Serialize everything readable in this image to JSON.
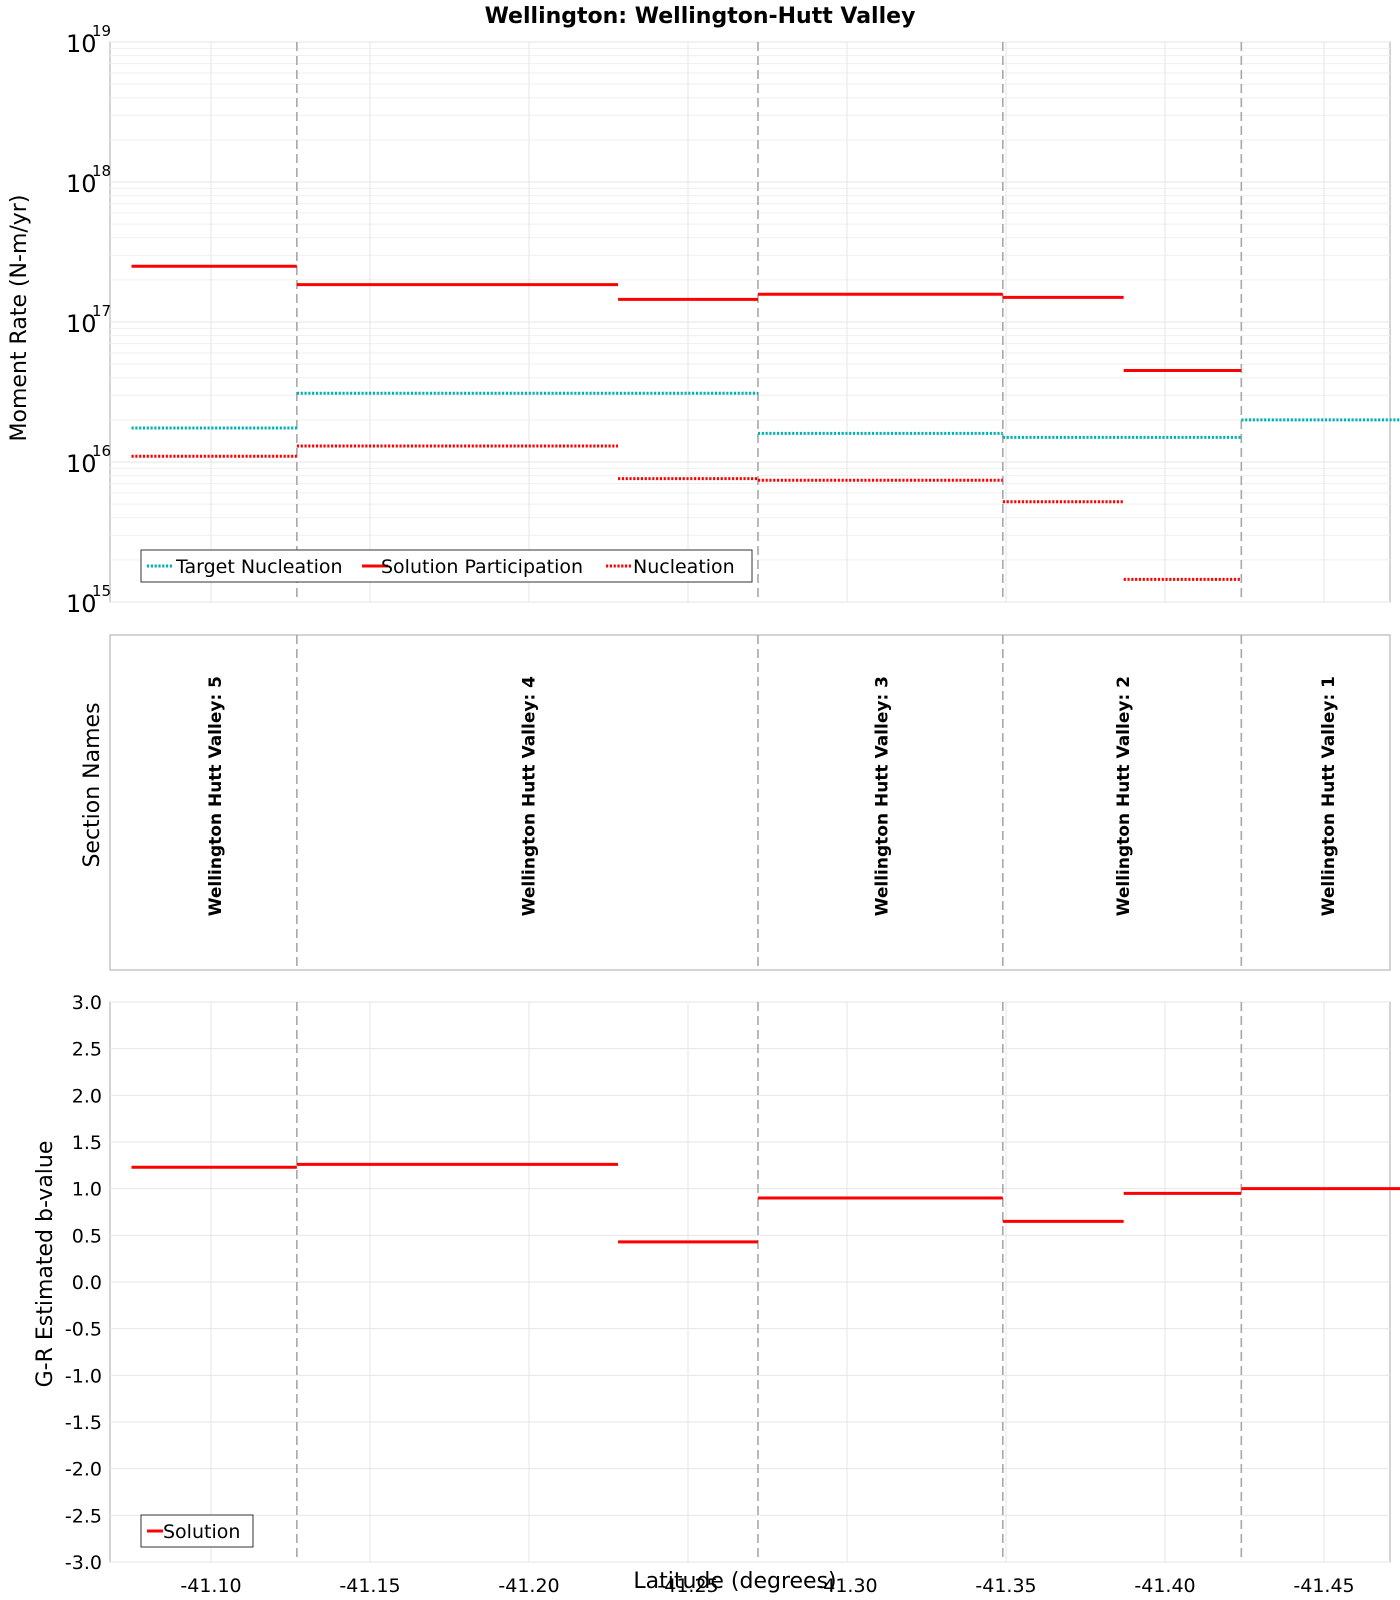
{
  "chart_data": [
    {
      "type": "line",
      "panel": "moment",
      "title": "Wellington: Wellington-Hutt Valley",
      "ylabel": "Moment Rate (N-m/yr)",
      "yscale": "log",
      "ylim": [
        1000000000000000.0,
        1e+19
      ],
      "y_ticks": [
        {
          "base": "10",
          "exp": "15",
          "value": 1000000000000000.0
        },
        {
          "base": "10",
          "exp": "16",
          "value": 1e+16
        },
        {
          "base": "10",
          "exp": "17",
          "value": 1e+17
        },
        {
          "base": "10",
          "exp": "18",
          "value": 1e+18
        },
        {
          "base": "10",
          "exp": "19",
          "value": 1e+19
        }
      ],
      "xlim": [
        -41.075,
        -41.478
      ],
      "series": [
        {
          "name": "Target Nucleation",
          "color": "#00b2b2",
          "style": "dotted",
          "segments": [
            {
              "x": [
                -41.075,
                -41.127
              ],
              "y": 1.75e+16
            },
            {
              "x": [
                -41.127,
                -41.272
              ],
              "y": 3.1e+16
            },
            {
              "x": [
                -41.272,
                -41.349
              ],
              "y": 1.6e+16
            },
            {
              "x": [
                -41.349,
                -41.424
              ],
              "y": 1.5e+16
            },
            {
              "x": [
                -41.424,
                -41.478
              ],
              "y": 2e+16
            }
          ]
        },
        {
          "name": "Solution Participation",
          "color": "#ff0000",
          "style": "solid",
          "segments": [
            {
              "x": [
                -41.075,
                -41.127
              ],
              "y": 2.5e+17
            },
            {
              "x": [
                -41.127,
                -41.228
              ],
              "y": 1.85e+17
            },
            {
              "x": [
                -41.228,
                -41.272
              ],
              "y": 1.45e+17
            },
            {
              "x": [
                -41.272,
                -41.349
              ],
              "y": 1.58e+17
            },
            {
              "x": [
                -41.349,
                -41.387
              ],
              "y": 1.5e+17
            },
            {
              "x": [
                -41.387,
                -41.424
              ],
              "y": 4.5e+16
            }
          ]
        },
        {
          "name": "Nucleation",
          "color": "#ff0000",
          "style": "dotted",
          "segments": [
            {
              "x": [
                -41.075,
                -41.127
              ],
              "y": 1.1e+16
            },
            {
              "x": [
                -41.127,
                -41.228
              ],
              "y": 1.3e+16
            },
            {
              "x": [
                -41.228,
                -41.272
              ],
              "y": 7600000000000000.0
            },
            {
              "x": [
                -41.272,
                -41.349
              ],
              "y": 7400000000000000.0
            },
            {
              "x": [
                -41.349,
                -41.387
              ],
              "y": 5200000000000000.0
            },
            {
              "x": [
                -41.387,
                -41.424
              ],
              "y": 1450000000000000.0
            }
          ]
        }
      ],
      "legend": "bottom-left"
    },
    {
      "type": "table",
      "panel": "sections",
      "ylabel": "Section Names",
      "sections": [
        {
          "name": "Wellington Hutt Valley: 5",
          "x": [
            -41.075,
            -41.127
          ]
        },
        {
          "name": "Wellington Hutt Valley: 4",
          "x": [
            -41.127,
            -41.272
          ]
        },
        {
          "name": "Wellington Hutt Valley: 3",
          "x": [
            -41.272,
            -41.349
          ]
        },
        {
          "name": "Wellington Hutt Valley: 2",
          "x": [
            -41.349,
            -41.424
          ]
        },
        {
          "name": "Wellington Hutt Valley: 1",
          "x": [
            -41.424,
            -41.478
          ]
        }
      ]
    },
    {
      "type": "line",
      "panel": "bvalue",
      "ylabel": "G-R Estimated b-value",
      "xlabel": "Latitude (degrees)",
      "ylim": [
        -3.0,
        3.0
      ],
      "y_ticks": [
        "-3.0",
        "-2.5",
        "-2.0",
        "-1.5",
        "-1.0",
        "-0.5",
        "0.0",
        "0.5",
        "1.0",
        "1.5",
        "2.0",
        "2.5",
        "3.0"
      ],
      "x_ticks": [
        "-41.10",
        "-41.15",
        "-41.20",
        "-41.25",
        "-41.30",
        "-41.35",
        "-41.40",
        "-41.45"
      ],
      "xlim": [
        -41.075,
        -41.478
      ],
      "series": [
        {
          "name": "Solution",
          "color": "#ff0000",
          "style": "solid",
          "segments": [
            {
              "x": [
                -41.075,
                -41.127
              ],
              "y": 1.23
            },
            {
              "x": [
                -41.127,
                -41.228
              ],
              "y": 1.26
            },
            {
              "x": [
                -41.228,
                -41.272
              ],
              "y": 0.43
            },
            {
              "x": [
                -41.272,
                -41.349
              ],
              "y": 0.9
            },
            {
              "x": [
                -41.349,
                -41.387
              ],
              "y": 0.65
            },
            {
              "x": [
                -41.387,
                -41.424
              ],
              "y": 0.95
            },
            {
              "x": [
                -41.424,
                -41.478
              ],
              "y": 1.0
            }
          ]
        }
      ],
      "legend": "bottom-left"
    }
  ]
}
